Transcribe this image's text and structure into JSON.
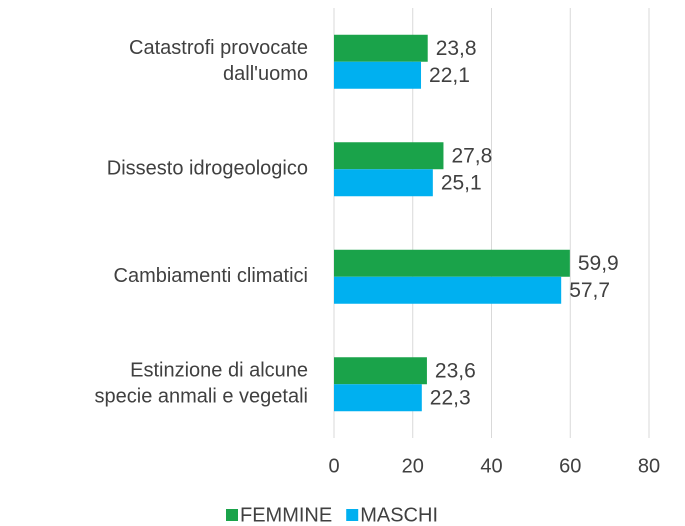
{
  "chart_data": {
    "type": "hbar",
    "categories": [
      "Catastrofi provocate\ndall'uomo",
      "Dissesto idrogeologico",
      "Cambiamenti climatici",
      "Estinzione di alcune\nspecie anmali e vegetali"
    ],
    "series": [
      {
        "name": "FEMMINE",
        "color": "#1aa34a",
        "values": [
          23.8,
          27.8,
          59.9,
          23.6
        ],
        "value_labels": [
          "23,8",
          "27,8",
          "59,9",
          "23,6"
        ]
      },
      {
        "name": "MASCHI",
        "color": "#00b0f0",
        "values": [
          22.1,
          25.1,
          57.7,
          22.3
        ],
        "value_labels": [
          "22,1",
          "25,1",
          "57,7",
          "22,3"
        ]
      }
    ],
    "xlim": [
      0,
      80
    ],
    "xticks": [
      0,
      20,
      40,
      60,
      80
    ],
    "grid": true,
    "legend": "bottom"
  }
}
